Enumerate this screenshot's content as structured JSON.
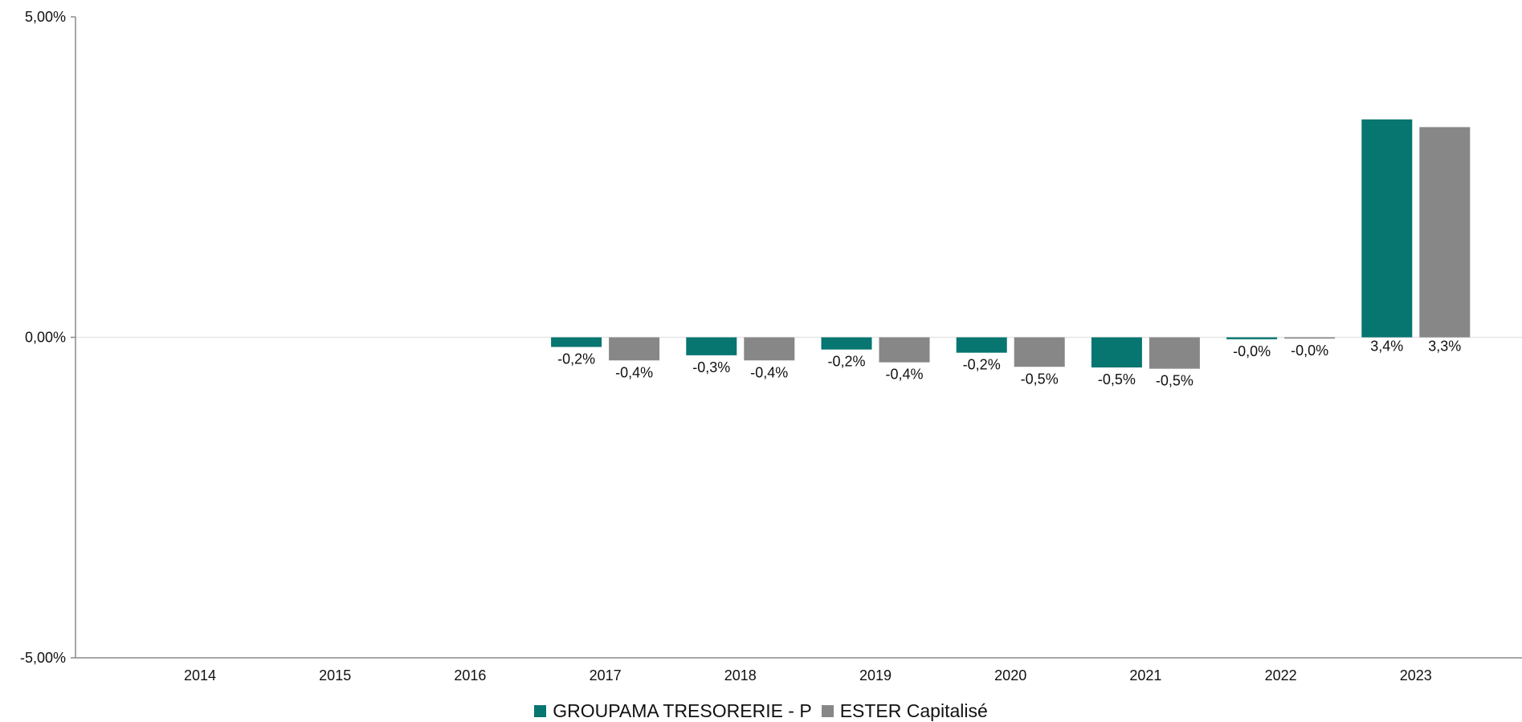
{
  "chart_data": {
    "type": "bar",
    "categories": [
      "2014",
      "2015",
      "2016",
      "2017",
      "2018",
      "2019",
      "2020",
      "2021",
      "2022",
      "2023"
    ],
    "series": [
      {
        "name": "GROUPAMA TRESORERIE - P",
        "color": "#077570",
        "values": [
          null,
          null,
          null,
          -0.15,
          -0.28,
          -0.19,
          -0.24,
          -0.47,
          -0.03,
          3.4
        ],
        "labels": [
          "",
          "",
          "",
          "-0,2%",
          "-0,3%",
          "-0,2%",
          "-0,2%",
          "-0,5%",
          "-0,0%",
          "3,4%"
        ]
      },
      {
        "name": "ESTER Capitalisé",
        "color": "#878787",
        "values": [
          null,
          null,
          null,
          -0.36,
          -0.36,
          -0.39,
          -0.46,
          -0.49,
          -0.02,
          3.28
        ],
        "labels": [
          "",
          "",
          "",
          "-0,4%",
          "-0,4%",
          "-0,4%",
          "-0,5%",
          "-0,5%",
          "-0,0%",
          "3,3%"
        ]
      }
    ],
    "yticks": [
      5,
      0,
      -5
    ],
    "ytick_labels": [
      "5,00%",
      "0,00%",
      "-5,00%"
    ],
    "ylim": [
      -5,
      5
    ],
    "grid": false,
    "zero_line": true,
    "legend_position": "bottom"
  }
}
